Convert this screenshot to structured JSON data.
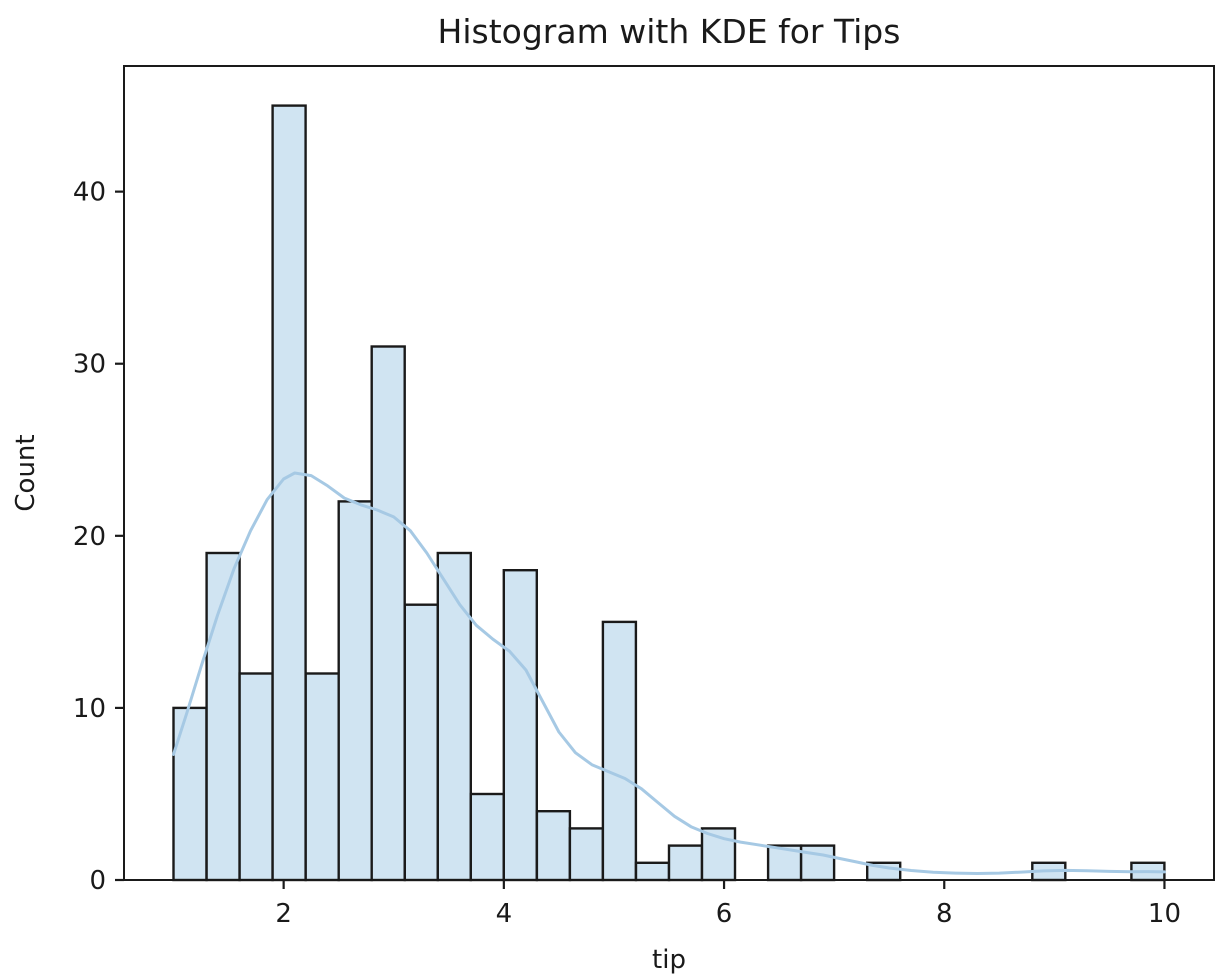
{
  "figure": {
    "title": "Histogram with KDE for Tips",
    "xlabel": "tip",
    "ylabel": "Count"
  },
  "chart_data": {
    "type": "bar",
    "subtype": "histogram_with_kde",
    "title": "Histogram with KDE for Tips",
    "xlabel": "tip",
    "ylabel": "Count",
    "grid": false,
    "legend_position": "none",
    "xlim": [
      0.55,
      10.45
    ],
    "ylim": [
      0,
      47.3
    ],
    "x_ticks": [
      2,
      4,
      6,
      8,
      10
    ],
    "y_ticks": [
      0,
      10,
      20,
      30,
      40
    ],
    "bin_start": 1.0,
    "bin_width": 0.3,
    "bin_counts": [
      10,
      19,
      12,
      45,
      12,
      22,
      31,
      16,
      19,
      5,
      18,
      4,
      3,
      15,
      1,
      2,
      3,
      0,
      2,
      2,
      0,
      1,
      0,
      0,
      0,
      0,
      1,
      0,
      0,
      1
    ],
    "total_observations": 244,
    "kde_points": [
      [
        1.0,
        7.3
      ],
      [
        1.12,
        9.7
      ],
      [
        1.25,
        12.4
      ],
      [
        1.4,
        15.4
      ],
      [
        1.55,
        18.1
      ],
      [
        1.7,
        20.3
      ],
      [
        1.85,
        22.1
      ],
      [
        2.0,
        23.3
      ],
      [
        2.1,
        23.65
      ],
      [
        2.25,
        23.5
      ],
      [
        2.4,
        22.9
      ],
      [
        2.55,
        22.2
      ],
      [
        2.7,
        21.8
      ],
      [
        2.85,
        21.5
      ],
      [
        3.0,
        21.1
      ],
      [
        3.15,
        20.3
      ],
      [
        3.3,
        19.0
      ],
      [
        3.45,
        17.5
      ],
      [
        3.6,
        16.0
      ],
      [
        3.75,
        14.8
      ],
      [
        3.9,
        14.0
      ],
      [
        4.05,
        13.3
      ],
      [
        4.2,
        12.2
      ],
      [
        4.35,
        10.4
      ],
      [
        4.5,
        8.6
      ],
      [
        4.65,
        7.4
      ],
      [
        4.8,
        6.7
      ],
      [
        4.95,
        6.3
      ],
      [
        5.1,
        5.9
      ],
      [
        5.25,
        5.3
      ],
      [
        5.4,
        4.5
      ],
      [
        5.55,
        3.7
      ],
      [
        5.7,
        3.1
      ],
      [
        5.85,
        2.7
      ],
      [
        6.0,
        2.4
      ],
      [
        6.15,
        2.2
      ],
      [
        6.3,
        2.05
      ],
      [
        6.45,
        1.9
      ],
      [
        6.6,
        1.75
      ],
      [
        6.75,
        1.6
      ],
      [
        6.9,
        1.45
      ],
      [
        7.05,
        1.25
      ],
      [
        7.2,
        1.05
      ],
      [
        7.35,
        0.85
      ],
      [
        7.5,
        0.7
      ],
      [
        7.7,
        0.55
      ],
      [
        7.9,
        0.45
      ],
      [
        8.1,
        0.4
      ],
      [
        8.3,
        0.38
      ],
      [
        8.5,
        0.4
      ],
      [
        8.7,
        0.46
      ],
      [
        8.9,
        0.53
      ],
      [
        9.1,
        0.56
      ],
      [
        9.3,
        0.54
      ],
      [
        9.5,
        0.5
      ],
      [
        9.7,
        0.48
      ],
      [
        9.85,
        0.49
      ],
      [
        10.0,
        0.47
      ]
    ],
    "colors": {
      "bar_fill": "#d0e4f2",
      "bar_edge": "#1a1a1a",
      "kde_line": "#a6c9e4",
      "spine": "#1a1a1a",
      "tick": "#1a1a1a",
      "text": "#1a1a1a",
      "background": "#ffffff"
    }
  }
}
